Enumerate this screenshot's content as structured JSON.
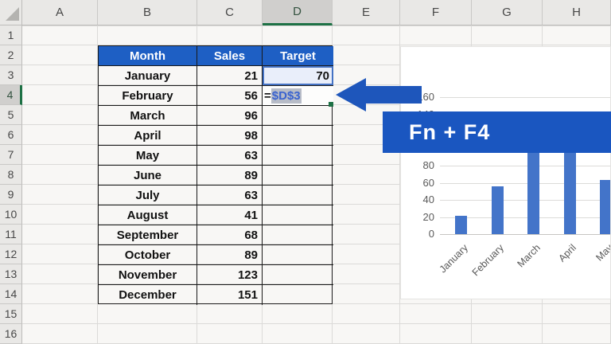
{
  "sheet": {
    "column_headers": [
      "A",
      "B",
      "C",
      "D",
      "E",
      "F",
      "G",
      "H"
    ],
    "row_headers": [
      "1",
      "2",
      "3",
      "4",
      "5",
      "6",
      "7",
      "8",
      "9",
      "10",
      "11",
      "12",
      "13",
      "14",
      "15",
      "16"
    ],
    "selected_column": "D",
    "selected_row": "4",
    "active_cell": "D4"
  },
  "table": {
    "headers": {
      "month": "Month",
      "sales": "Sales",
      "target": "Target"
    },
    "rows": [
      {
        "month": "January",
        "sales": "21",
        "target": "70"
      },
      {
        "month": "February",
        "sales": "56",
        "target": "=$D$3"
      },
      {
        "month": "March",
        "sales": "96",
        "target": ""
      },
      {
        "month": "April",
        "sales": "98",
        "target": ""
      },
      {
        "month": "May",
        "sales": "63",
        "target": ""
      },
      {
        "month": "June",
        "sales": "89",
        "target": ""
      },
      {
        "month": "July",
        "sales": "63",
        "target": ""
      },
      {
        "month": "August",
        "sales": "41",
        "target": ""
      },
      {
        "month": "September",
        "sales": "68",
        "target": ""
      },
      {
        "month": "October",
        "sales": "89",
        "target": ""
      },
      {
        "month": "November",
        "sales": "123",
        "target": ""
      },
      {
        "month": "December",
        "sales": "151",
        "target": ""
      }
    ]
  },
  "formula": {
    "prefix": "=",
    "reference": "$D$3"
  },
  "callout": {
    "label": "Fn + F4"
  },
  "chart_data": {
    "type": "bar",
    "categories": [
      "January",
      "February",
      "March",
      "April",
      "May"
    ],
    "values": [
      21,
      56,
      96,
      98,
      63
    ],
    "title": "",
    "xlabel": "",
    "ylabel": "",
    "ylim": [
      0,
      160
    ],
    "ytick_step": 20,
    "grid": true,
    "legend": false,
    "bar_color": "#4374c9"
  },
  "colors": {
    "table_header_bg": "#1e5fc4",
    "banner_bg": "#1a56c0",
    "arrow": "#1e56bb",
    "bar": "#4374c9",
    "reference_text": "#3a63cf",
    "reference_highlight": "#b7bcc7",
    "reference_cell_border": "#4472c4",
    "reference_cell_fill": "#e9eefa",
    "header_accent_green": "#1e7145"
  }
}
